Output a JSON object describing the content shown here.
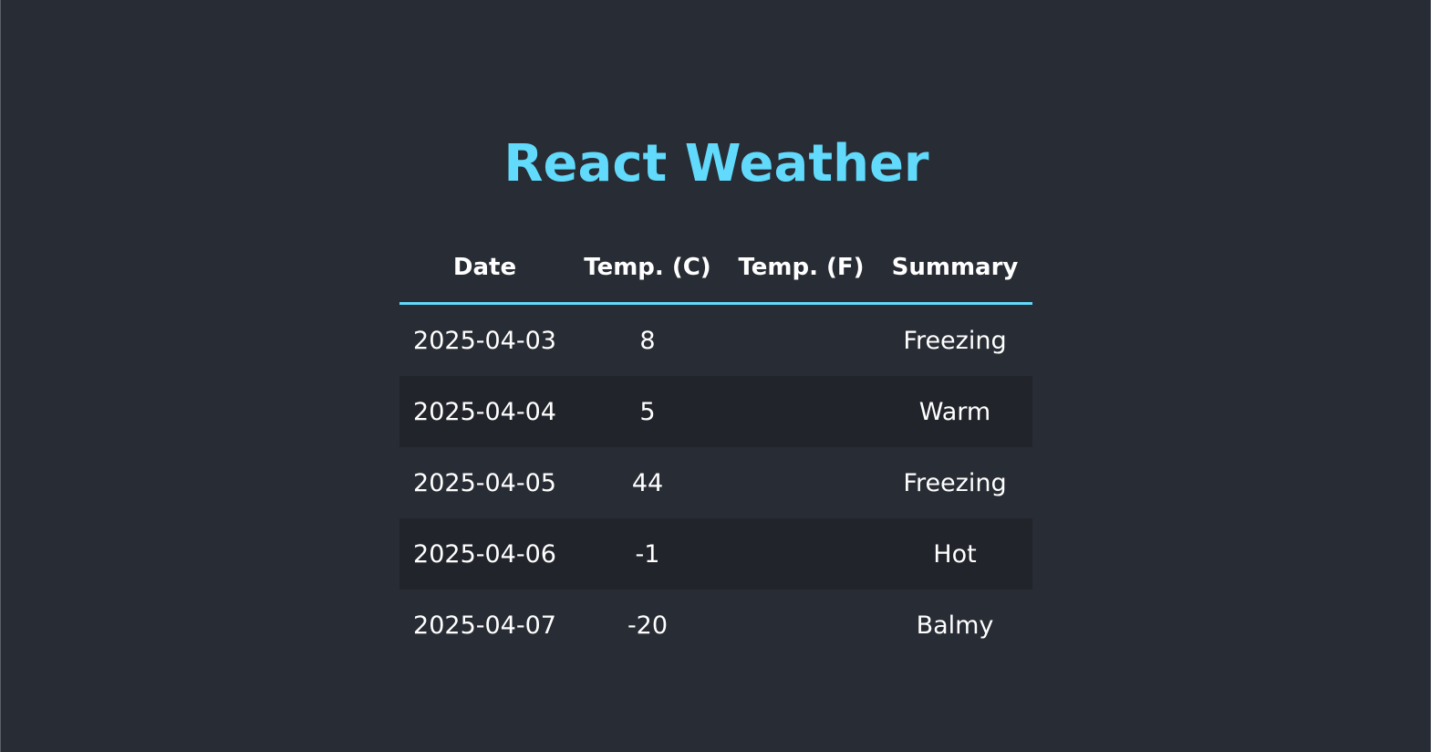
{
  "app": {
    "title": "React Weather"
  },
  "table": {
    "headers": [
      "Date",
      "Temp. (C)",
      "Temp. (F)",
      "Summary"
    ],
    "rows": [
      {
        "date": "2025-04-03",
        "temp_c": "8",
        "temp_f": "",
        "summary": "Freezing"
      },
      {
        "date": "2025-04-04",
        "temp_c": "5",
        "temp_f": "",
        "summary": "Warm"
      },
      {
        "date": "2025-04-05",
        "temp_c": "44",
        "temp_f": "",
        "summary": "Freezing"
      },
      {
        "date": "2025-04-06",
        "temp_c": "-1",
        "temp_f": "",
        "summary": "Hot"
      },
      {
        "date": "2025-04-07",
        "temp_c": "-20",
        "temp_f": "",
        "summary": "Balmy"
      }
    ]
  },
  "colors": {
    "background": "#282c34",
    "accent": "#61dafb",
    "text": "#ffffff",
    "row_alt": "#21242b"
  }
}
